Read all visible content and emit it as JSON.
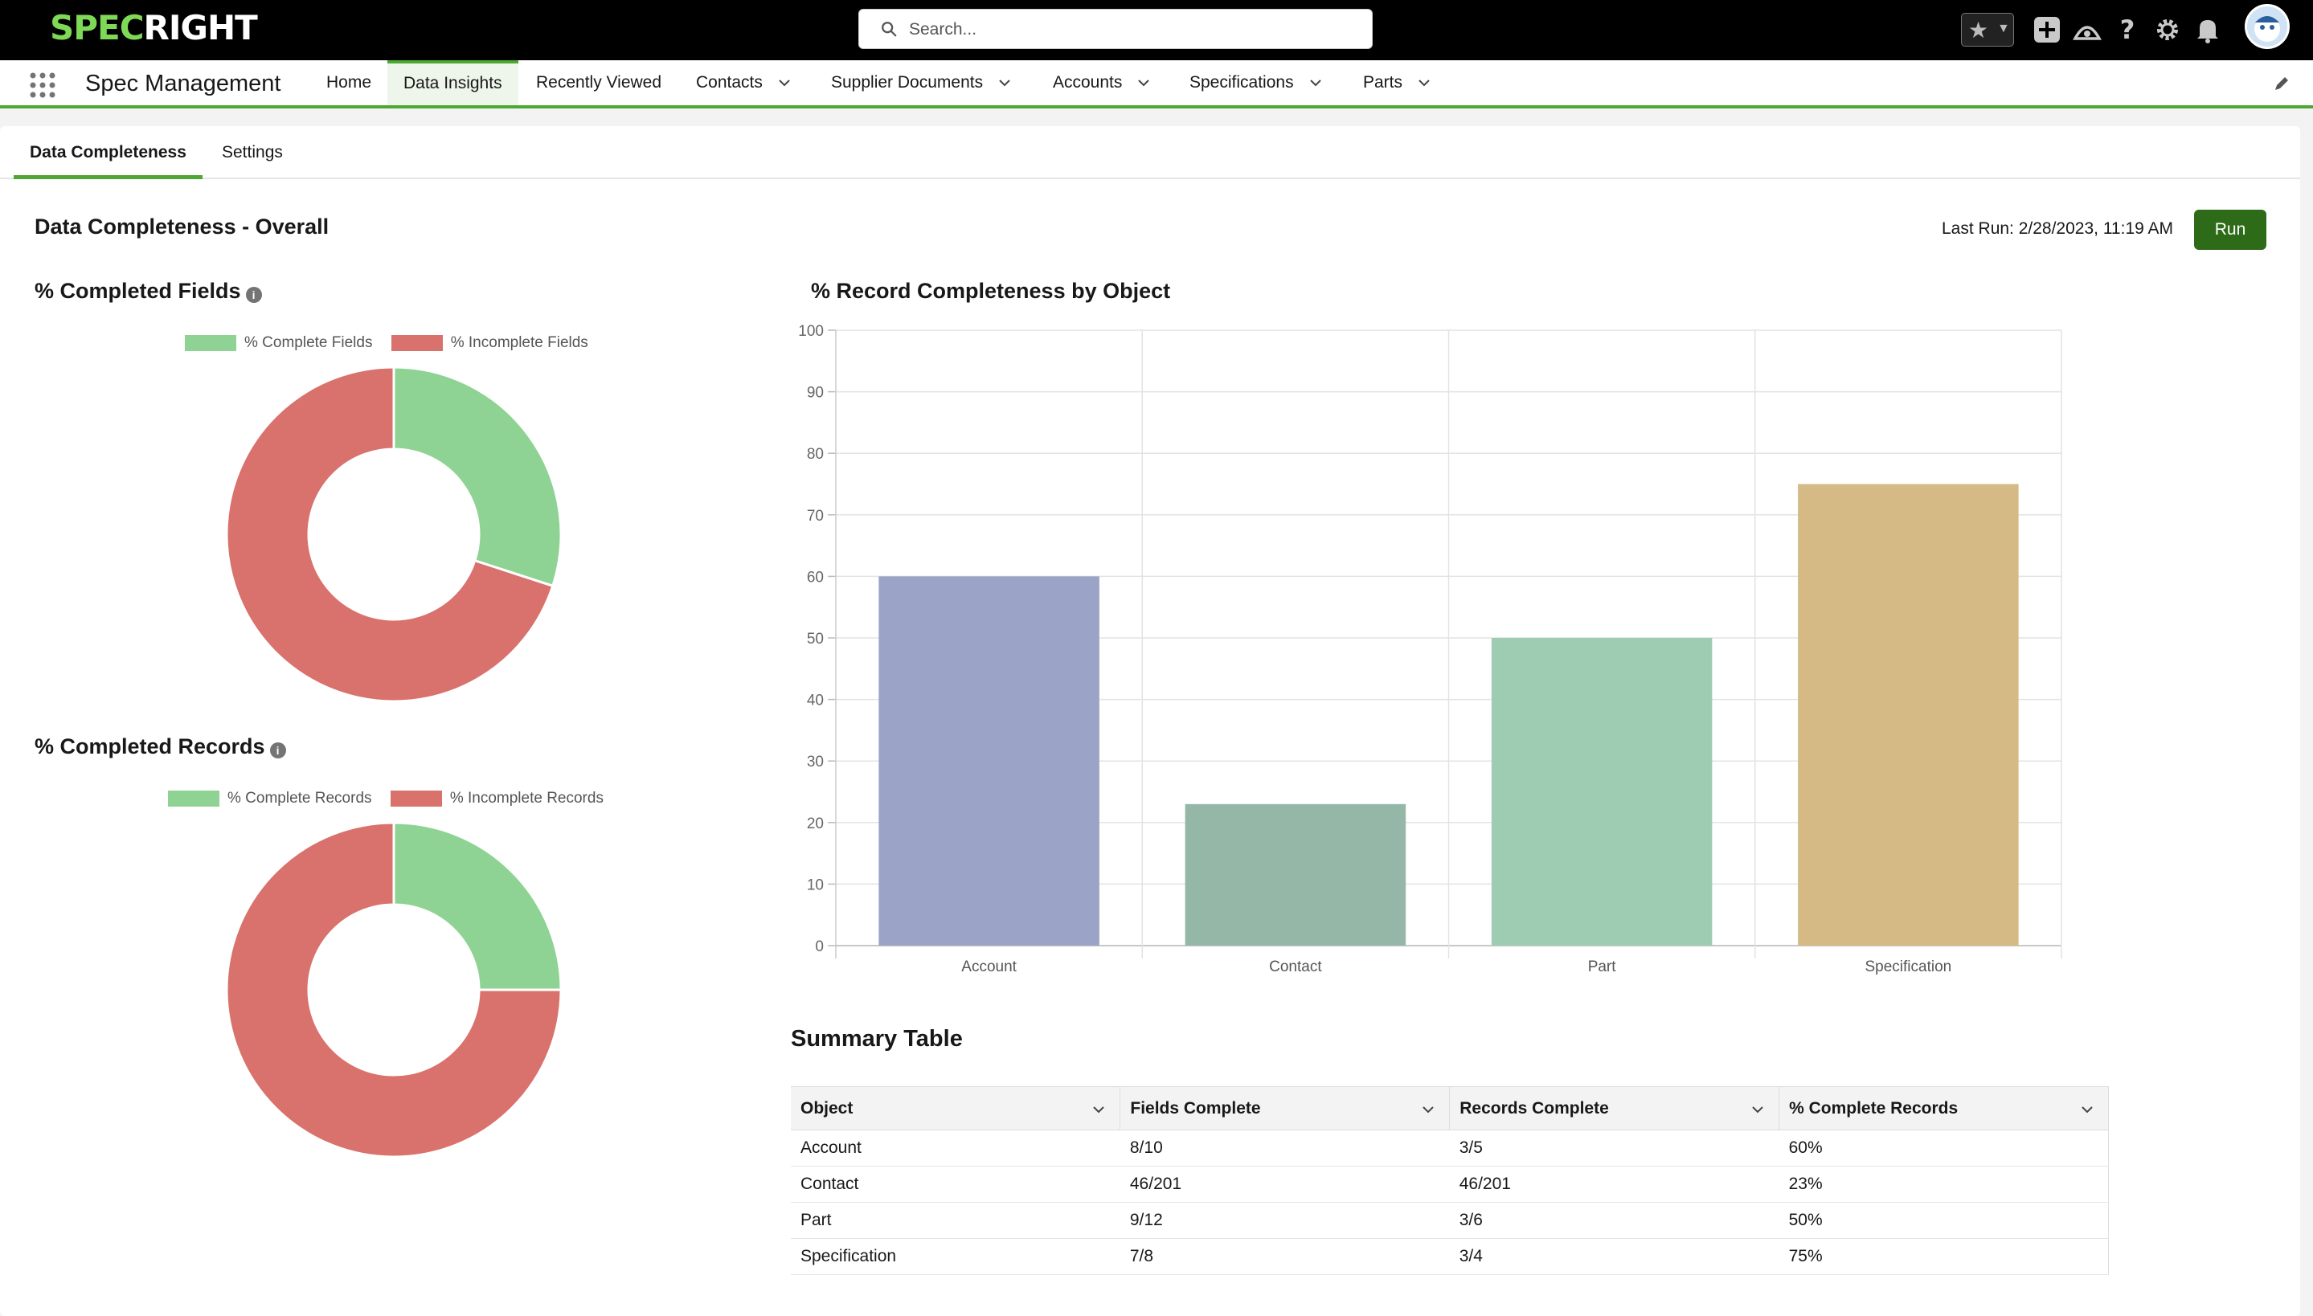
{
  "brand": {
    "logo_spec": "SPEC",
    "logo_right": "RIGHT"
  },
  "search": {
    "placeholder": "Search..."
  },
  "header_icons": [
    "star-icon",
    "add-icon",
    "trailhead-icon",
    "help-icon",
    "settings-icon",
    "bell-icon",
    "avatar"
  ],
  "app": {
    "name": "Spec Management"
  },
  "nav": [
    {
      "label": "Home",
      "dropdown": false
    },
    {
      "label": "Data Insights",
      "dropdown": false,
      "active": true
    },
    {
      "label": "Recently Viewed",
      "dropdown": false
    },
    {
      "label": "Contacts",
      "dropdown": true
    },
    {
      "label": "Supplier Documents",
      "dropdown": true
    },
    {
      "label": "Accounts",
      "dropdown": true
    },
    {
      "label": "Specifications",
      "dropdown": true
    },
    {
      "label": "Parts",
      "dropdown": true
    }
  ],
  "tabs": [
    {
      "label": "Data Completeness",
      "active": true
    },
    {
      "label": "Settings"
    }
  ],
  "overall": {
    "title": "Data Completeness - Overall",
    "last_run": "Last Run: 2/28/2023, 11:19 AM",
    "run_label": "Run"
  },
  "fields_section": {
    "title": "% Completed Fields"
  },
  "records_section": {
    "title": "% Completed Records"
  },
  "colors": {
    "complete": "#8fd394",
    "incomplete": "#d9716c",
    "accent": "#4ca832",
    "run_button": "#2e6b18"
  },
  "chart_data": [
    {
      "type": "pie",
      "title": "% Completed Fields",
      "legend": [
        "% Complete Fields",
        "% Incomplete Fields"
      ],
      "legend_position": "top",
      "values": [
        30,
        70
      ],
      "colors": [
        "#8fd394",
        "#d9716c"
      ]
    },
    {
      "type": "pie",
      "title": "% Completed Records",
      "legend": [
        "% Complete Records",
        "% Incomplete Records"
      ],
      "legend_position": "top",
      "values": [
        25,
        75
      ],
      "colors": [
        "#8fd394",
        "#d9716c"
      ]
    },
    {
      "type": "bar",
      "title": "% Record Completeness by Object",
      "categories": [
        "Account",
        "Contact",
        "Part",
        "Specification"
      ],
      "values": [
        60,
        23,
        50,
        75
      ],
      "colors": [
        "#9ba3c6",
        "#95b7a8",
        "#9dccb3",
        "#d5ba85"
      ],
      "ylim": [
        0,
        100
      ],
      "yticks": [
        "0",
        "10",
        "20",
        "30",
        "40",
        "50",
        "60",
        "70",
        "80",
        "90",
        "100"
      ],
      "grid": true
    }
  ],
  "summary": {
    "title": "Summary Table",
    "columns": [
      "Object",
      "Fields Complete",
      "Records Complete",
      "% Complete Records"
    ],
    "rows": [
      [
        "Account",
        "8/10",
        "3/5",
        "60%"
      ],
      [
        "Contact",
        "46/201",
        "46/201",
        "23%"
      ],
      [
        "Part",
        "9/12",
        "3/6",
        "50%"
      ],
      [
        "Specification",
        "7/8",
        "3/4",
        "75%"
      ]
    ]
  }
}
